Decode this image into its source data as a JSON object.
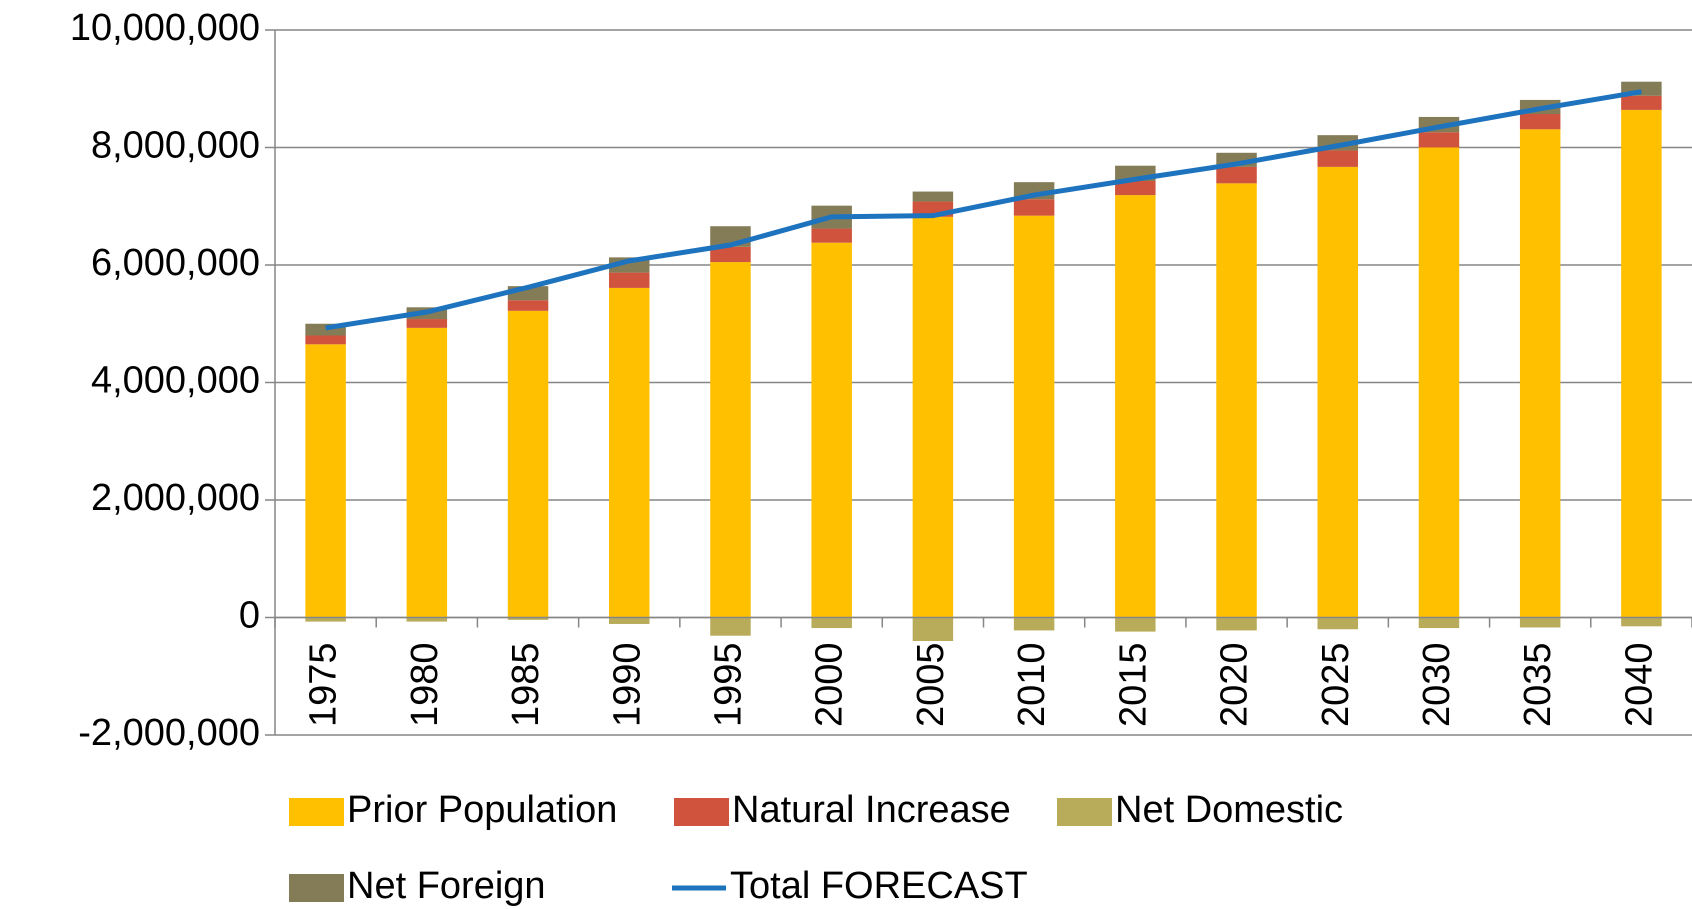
{
  "chart_data": {
    "type": "bar",
    "stacked": true,
    "categories": [
      "1975",
      "1980",
      "1985",
      "1990",
      "1995",
      "2000",
      "2005",
      "2010",
      "2015",
      "2020",
      "2025",
      "2030",
      "2035",
      "2040"
    ],
    "series": [
      {
        "name": "Prior Population",
        "color": "#ffc000",
        "values": [
          4650000,
          4930000,
          5220000,
          5610000,
          6050000,
          6380000,
          6820000,
          6840000,
          7190000,
          7390000,
          7670000,
          8000000,
          8310000,
          8640000
        ]
      },
      {
        "name": "Natural Increase",
        "color": "#d0533e",
        "values": [
          150000,
          150000,
          180000,
          260000,
          260000,
          240000,
          260000,
          280000,
          240000,
          280000,
          280000,
          260000,
          260000,
          240000
        ]
      },
      {
        "name": "Net Domestic",
        "color": "#b8ac5a",
        "values": [
          -70000,
          -70000,
          -40000,
          -110000,
          -310000,
          -180000,
          -400000,
          -220000,
          -240000,
          -220000,
          -200000,
          -180000,
          -170000,
          -150000
        ]
      },
      {
        "name": "Net Foreign",
        "color": "#847b57",
        "values": [
          200000,
          200000,
          240000,
          260000,
          350000,
          390000,
          170000,
          290000,
          260000,
          240000,
          260000,
          260000,
          240000,
          240000
        ]
      },
      {
        "name": "Total FORECAST",
        "type": "line",
        "color": "#1e73be",
        "values": [
          4930000,
          5200000,
          5620000,
          6070000,
          6340000,
          6820000,
          6840000,
          7190000,
          7460000,
          7720000,
          8030000,
          8350000,
          8660000,
          8950000
        ]
      }
    ],
    "ylim": [
      -2000000,
      10000000
    ],
    "yticks": [
      {
        "value": -2000000,
        "label": "-2,000,000"
      },
      0,
      {
        "value": 2000000,
        "label": "2,000,000"
      },
      {
        "value": 4000000,
        "label": "4,000,000"
      },
      {
        "value": 6000000,
        "label": "6,000,000"
      },
      {
        "value": 8000000,
        "label": "8,000,000"
      },
      {
        "value": 10000000,
        "label": "10,000,000"
      }
    ],
    "grid": true
  }
}
